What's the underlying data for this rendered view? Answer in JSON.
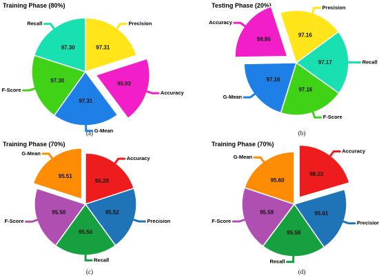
{
  "chart_data": [
    {
      "type": "pie",
      "title": "Training Phase (80%)",
      "caption": "(a)",
      "exploded": "Accuracy",
      "slices": [
        {
          "label": "Precision",
          "value": 97.31,
          "display": "97.31",
          "color": "#FFE519"
        },
        {
          "label": "Accuracy",
          "value": 95.92,
          "display": "95.92",
          "color": "#F21EC8"
        },
        {
          "label": "G-Mean",
          "value": 97.31,
          "display": "97.31",
          "color": "#1E7FE6"
        },
        {
          "label": "F-Score",
          "value": 97.3,
          "display": "97.30",
          "color": "#40D216"
        },
        {
          "label": "Recall",
          "value": 97.3,
          "display": "97.30",
          "color": "#19E0B0"
        }
      ]
    },
    {
      "type": "pie",
      "title": "Testing Phase (20%)",
      "caption": "(b)",
      "exploded": "Accuracy",
      "slices": [
        {
          "label": "Precision",
          "value": 97.16,
          "display": "97.16",
          "color": "#FFE519"
        },
        {
          "label": "Recall",
          "value": 97.17,
          "display": "97.17",
          "color": "#19E0B0"
        },
        {
          "label": "F-Score",
          "value": 97.16,
          "display": "97.16",
          "color": "#40D216"
        },
        {
          "label": "G-Mean",
          "value": 97.16,
          "display": "97.16",
          "color": "#1E7FE6"
        },
        {
          "label": "Accuracy",
          "value": 98.86,
          "display": "98.86",
          "color": "#F21EC8"
        }
      ]
    },
    {
      "type": "pie",
      "title": "Training Phase (70%)",
      "caption": "(c)",
      "exploded": "G-Mean",
      "slices": [
        {
          "label": "Accuracy",
          "value": 95.2,
          "display": "95.20",
          "color": "#EE1C1C"
        },
        {
          "label": "Precision",
          "value": 95.52,
          "display": "95.52",
          "color": "#1F74B8"
        },
        {
          "label": "Recall",
          "value": 95.5,
          "display": "95.50",
          "color": "#17A040"
        },
        {
          "label": "F-Score",
          "value": 95.5,
          "display": "95.50",
          "color": "#B04FB2"
        },
        {
          "label": "G-Mean",
          "value": 95.51,
          "display": "95.51",
          "color": "#FF8C05"
        }
      ]
    },
    {
      "type": "pie",
      "title": "Training Phase (70%)",
      "caption": "(d)",
      "exploded": "Accuracy",
      "slices": [
        {
          "label": "Accuracy",
          "value": 98.23,
          "display": "98.23",
          "color": "#EE1C1C"
        },
        {
          "label": "Precision",
          "value": 95.61,
          "display": "95.61",
          "color": "#1F74B8"
        },
        {
          "label": "Recall",
          "value": 95.58,
          "display": "95.58",
          "color": "#17A040"
        },
        {
          "label": "F-Score",
          "value": 95.59,
          "display": "95.59",
          "color": "#B04FB2"
        },
        {
          "label": "G-Mean",
          "value": 95.6,
          "display": "95.60",
          "color": "#FF8C05"
        }
      ]
    }
  ]
}
